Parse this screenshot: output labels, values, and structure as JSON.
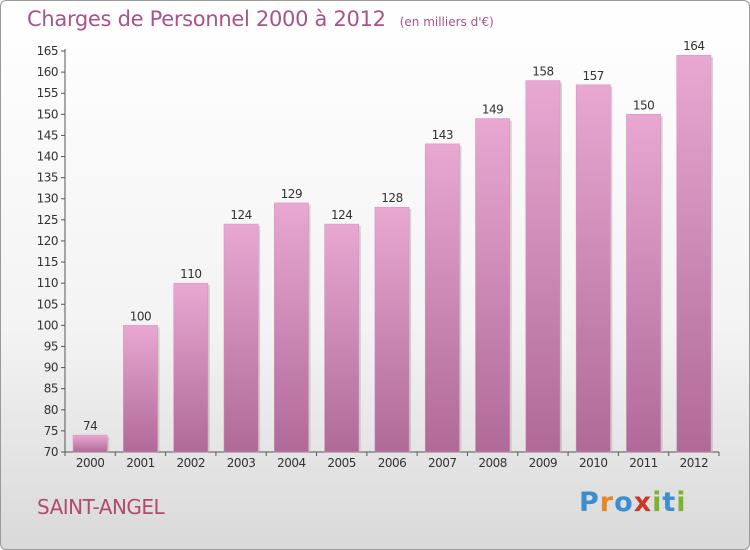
{
  "title": "Charges de Personnel 2000 à 2012",
  "subtitle": "(en milliers d'€)",
  "commune": "SAINT-ANGEL",
  "logo": {
    "letters": [
      "P",
      "r",
      "o",
      "x",
      "i",
      "t",
      "i"
    ],
    "colors": [
      "#3a8fd0",
      "#e8862a",
      "#3a8fd0",
      "#c8382b",
      "#7ab332",
      "#3a8fd0",
      "#7ab332"
    ]
  },
  "colors": {
    "bar_top": "#e8a8d2",
    "bar_bottom": "#b06a98",
    "text": "#333333",
    "accent": "#a8548a"
  },
  "chart_data": {
    "type": "bar",
    "title": "Charges de Personnel 2000 à 2012",
    "subtitle": "(en milliers d'€)",
    "categories": [
      "2000",
      "2001",
      "2002",
      "2003",
      "2004",
      "2005",
      "2006",
      "2007",
      "2008",
      "2009",
      "2010",
      "2011",
      "2012"
    ],
    "values": [
      74,
      100,
      110,
      124,
      129,
      124,
      128,
      143,
      149,
      158,
      157,
      150,
      164
    ],
    "ylim": [
      70,
      165
    ],
    "yticks": [
      70,
      75,
      80,
      85,
      90,
      95,
      100,
      105,
      110,
      115,
      120,
      125,
      130,
      135,
      140,
      145,
      150,
      155,
      160,
      165
    ],
    "grid": false,
    "data_labels": true
  }
}
